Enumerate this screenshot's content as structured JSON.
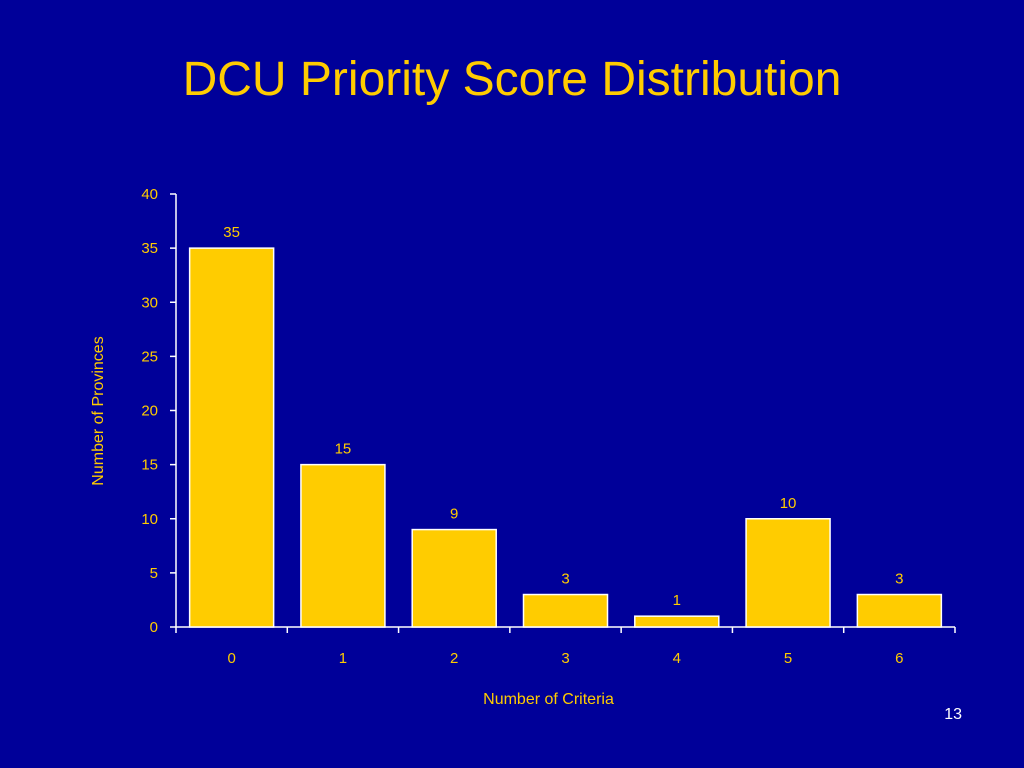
{
  "slide": {
    "title": "DCU Priority Score Distribution",
    "page_number": "13"
  },
  "colors": {
    "background": "#000099",
    "accent": "#FFCC00",
    "axis": "#FFFFFF",
    "bar_border": "#FFFFFF"
  },
  "chart_data": {
    "type": "bar",
    "title": "",
    "categories": [
      "0",
      "1",
      "2",
      "3",
      "4",
      "5",
      "6"
    ],
    "values": [
      35,
      15,
      9,
      3,
      1,
      10,
      3
    ],
    "data_labels": [
      "35",
      "15",
      "9",
      "3",
      "1",
      "10",
      "3"
    ],
    "xlabel": "Number of Criteria",
    "ylabel": "Number of Provinces",
    "ylim": [
      0,
      40
    ],
    "yticks": [
      0,
      5,
      10,
      15,
      20,
      25,
      30,
      35,
      40
    ],
    "ytick_labels": [
      "0",
      "5",
      "10",
      "15",
      "20",
      "25",
      "30",
      "35",
      "40"
    ],
    "grid": false,
    "legend": "none"
  }
}
